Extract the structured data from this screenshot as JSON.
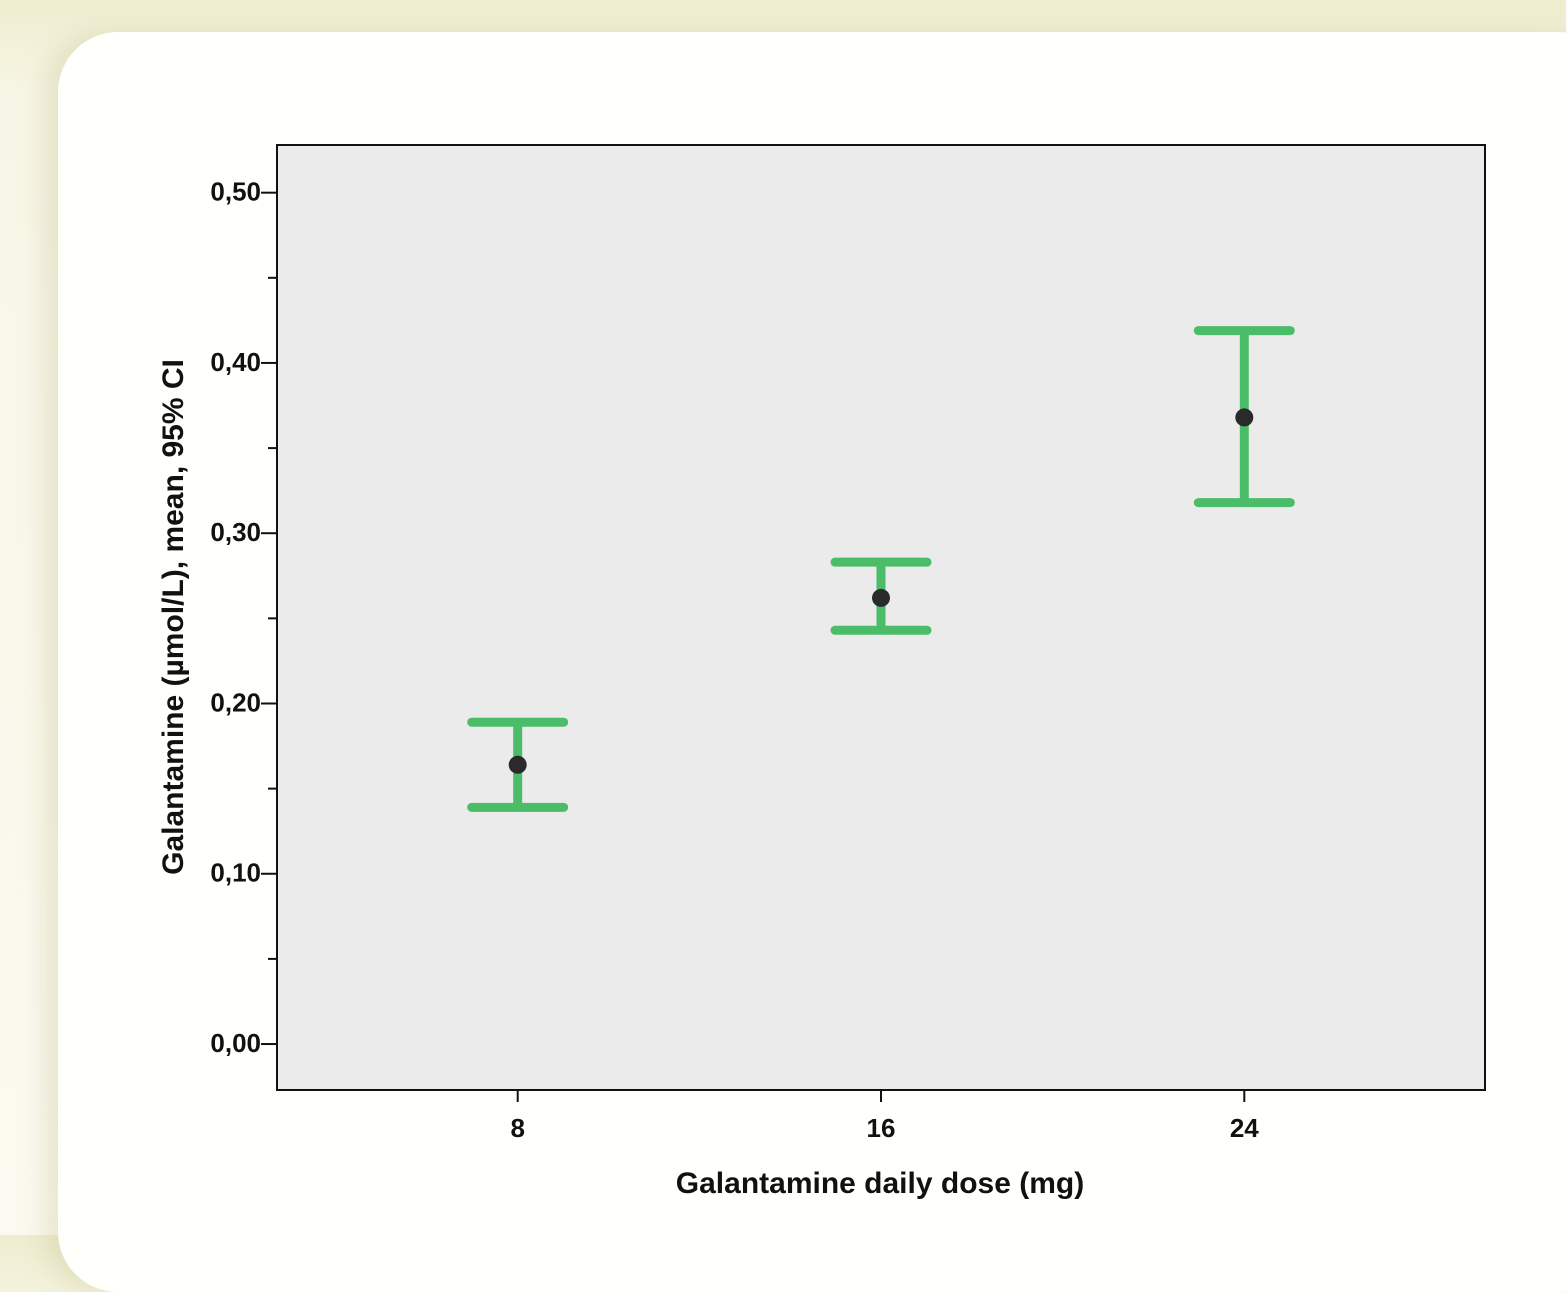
{
  "chart_data": {
    "type": "errorbar",
    "x_label": "Galantamine daily dose (mg)",
    "y_label": "Galantamine (µmol/L), mean, 95% CI",
    "x": [
      8,
      16,
      24
    ],
    "series": [
      {
        "color": "#4bbd68",
        "marker_color": "#2a2a2a",
        "values": [
          0.164,
          0.262,
          0.368
        ],
        "lower": [
          0.139,
          0.243,
          0.318
        ],
        "upper": [
          0.189,
          0.283,
          0.419
        ]
      }
    ],
    "xlim": [
      2.7,
      29.3
    ],
    "xticks": [
      8,
      16,
      24
    ],
    "ylim": [
      -0.027,
      0.528
    ],
    "yticks": [
      {
        "value": 0,
        "label": "0,00"
      },
      {
        "value": 0.1,
        "label": "0,10"
      },
      {
        "value": 0.2,
        "label": "0,20"
      },
      {
        "value": 0.3,
        "label": "0,30"
      },
      {
        "value": 0.4,
        "label": "0,40"
      },
      {
        "value": 0.5,
        "label": "0,50"
      }
    ],
    "yminor_ticks": [
      0.05,
      0.15,
      0.25,
      0.35,
      0.45
    ],
    "plot_background": "#ebebeb"
  }
}
